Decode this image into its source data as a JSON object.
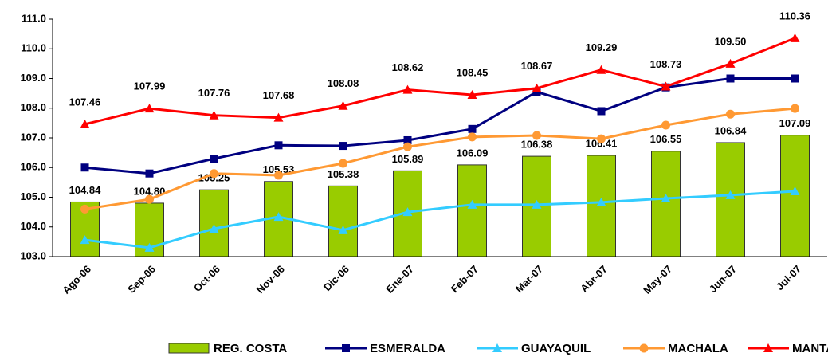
{
  "chart_data": {
    "type": "bar-line",
    "categories": [
      "Ago-06",
      "Sep-06",
      "Oct-06",
      "Nov-06",
      "Dic-06",
      "Ene-07",
      "Feb-07",
      "Mar-07",
      "Abr-07",
      "May-07",
      "Jun-07",
      "Jul-07"
    ],
    "ylim": [
      103,
      111
    ],
    "yticks": [
      {
        "value": 103,
        "label": "103.0"
      },
      {
        "value": 104,
        "label": "104.0"
      },
      {
        "value": 105,
        "label": "105.0"
      },
      {
        "value": 106,
        "label": "106.0"
      },
      {
        "value": 107,
        "label": "107.0"
      },
      {
        "value": 108,
        "label": "108.0"
      },
      {
        "value": 109,
        "label": "109.0"
      },
      {
        "value": 110,
        "label": "110.0"
      },
      {
        "value": 111,
        "label": "111.0"
      }
    ],
    "grid": false,
    "legend": "bottom",
    "series": [
      {
        "name": "REG. COSTA",
        "type": "bar",
        "color": "#99cc00",
        "values": [
          104.84,
          104.8,
          105.25,
          105.53,
          105.38,
          105.89,
          106.09,
          106.38,
          106.41,
          106.55,
          106.84,
          107.09
        ],
        "value_labels": [
          "104.84",
          "104.80",
          "105.25",
          "105.53",
          "105.38",
          "105.89",
          "106.09",
          "106.38",
          "106.41",
          "106.55",
          "106.84",
          "107.09"
        ]
      },
      {
        "name": "ESMERALDA",
        "type": "line",
        "marker": "square",
        "color": "#000080",
        "values": [
          106.0,
          105.8,
          106.3,
          106.75,
          106.73,
          106.92,
          107.3,
          108.55,
          107.9,
          108.7,
          109.0,
          109.0
        ]
      },
      {
        "name": "GUAYAQUIL",
        "type": "line",
        "marker": "triangle",
        "color": "#33ccff",
        "values": [
          103.56,
          103.3,
          103.94,
          104.34,
          103.89,
          104.5,
          104.75,
          104.75,
          104.83,
          104.96,
          105.07,
          105.2
        ]
      },
      {
        "name": "MACHALA",
        "type": "line",
        "marker": "circle",
        "color": "#ff9933",
        "values": [
          104.6,
          104.93,
          105.8,
          105.74,
          106.14,
          106.7,
          107.03,
          107.08,
          106.97,
          107.43,
          107.8,
          107.99
        ]
      },
      {
        "name": "MANTA",
        "type": "line",
        "marker": "triangle",
        "color": "#ff0000",
        "values": [
          107.46,
          107.99,
          107.76,
          107.68,
          108.08,
          108.62,
          108.45,
          108.67,
          109.29,
          108.73,
          109.5,
          110.36
        ],
        "value_labels": [
          "107.46",
          "107.99",
          "107.76",
          "107.68",
          "108.08",
          "108.62",
          "108.45",
          "108.67",
          "109.29",
          "108.73",
          "109.50",
          "110.36"
        ]
      }
    ]
  }
}
